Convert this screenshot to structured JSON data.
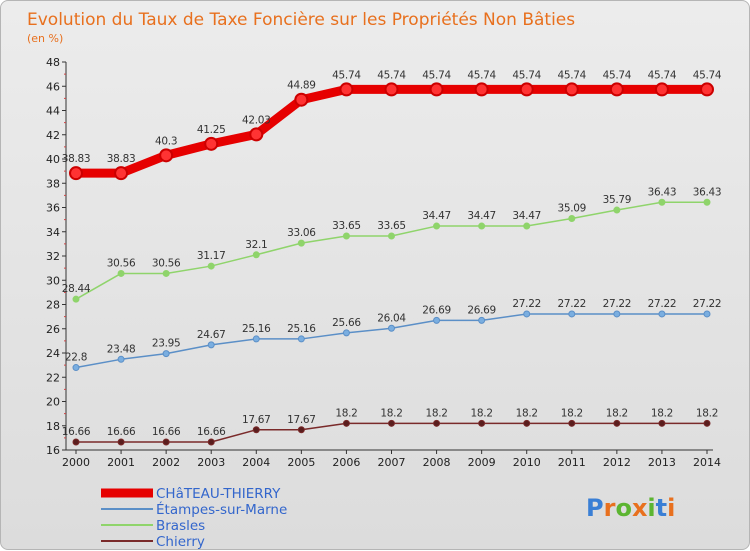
{
  "header": {
    "title": "Evolution du Taux de Taxe Foncière sur les Propriétés Non Bâties",
    "subtitle": "(en %)"
  },
  "logo": {
    "text": "Proxiti",
    "colors": [
      "#3a7fd5",
      "#e8701e",
      "#5cb531",
      "#e8701e",
      "#5cb531",
      "#3a7fd5",
      "#e8701e"
    ]
  },
  "chart_data": {
    "type": "line",
    "title": "Evolution du Taux de Taxe Foncière sur les Propriétés Non Bâties",
    "ylabel": "(en %)",
    "xlabel": "",
    "ylim": [
      16,
      48
    ],
    "y_ticks": [
      16,
      18,
      20,
      22,
      24,
      26,
      28,
      30,
      32,
      34,
      36,
      38,
      40,
      42,
      44,
      46,
      48
    ],
    "grid": false,
    "legend_position": "bottom-left",
    "x": [
      "2000",
      "2001",
      "2002",
      "2003",
      "2004",
      "2005",
      "2006",
      "2007",
      "2008",
      "2009",
      "2010",
      "2011",
      "2012",
      "2013",
      "2014"
    ],
    "series": [
      {
        "name": "CHâTEAU-THIERRY",
        "color": "#e60000",
        "marker_fill": "#ff3333",
        "width": 9,
        "values": [
          38.83,
          38.83,
          40.3,
          41.25,
          42.03,
          44.89,
          45.74,
          45.74,
          45.74,
          45.74,
          45.74,
          45.74,
          45.74,
          45.74,
          45.74
        ],
        "labels": [
          "38.83",
          "38.83",
          "40.3",
          "41.25",
          "42.03",
          "44.89",
          "45.74",
          "45.74",
          "45.74",
          "45.74",
          "45.74",
          "45.74",
          "45.74",
          "45.74",
          "45.74"
        ]
      },
      {
        "name": "Étampes-sur-Marne",
        "color": "#5b8fc7",
        "marker_fill": "#7aaee0",
        "width": 1.5,
        "values": [
          22.8,
          23.48,
          23.95,
          24.67,
          25.16,
          25.16,
          25.66,
          26.04,
          26.69,
          26.69,
          27.22,
          27.22,
          27.22,
          27.22,
          27.22
        ],
        "labels": [
          "22.8",
          "23.48",
          "23.95",
          "24.67",
          "25.16",
          "25.16",
          "25.66",
          "26.04",
          "26.69",
          "26.69",
          "27.22",
          "27.22",
          "27.22",
          "27.22",
          "27.22"
        ]
      },
      {
        "name": "Brasles",
        "color": "#8fd46b",
        "marker_fill": "#8fd46b",
        "width": 1.5,
        "values": [
          28.44,
          30.56,
          30.56,
          31.17,
          32.1,
          33.06,
          33.65,
          33.65,
          34.47,
          34.47,
          34.47,
          35.09,
          35.79,
          36.43,
          36.43
        ],
        "labels": [
          "28.44",
          "30.56",
          "30.56",
          "31.17",
          "32.1",
          "33.06",
          "33.65",
          "33.65",
          "34.47",
          "34.47",
          "34.47",
          "35.09",
          "35.79",
          "36.43",
          "36.43"
        ]
      },
      {
        "name": "Chierry",
        "color": "#7a2a2a",
        "marker_fill": "#5a1e1e",
        "width": 1.5,
        "values": [
          16.66,
          16.66,
          16.66,
          16.66,
          17.67,
          17.67,
          18.2,
          18.2,
          18.2,
          18.2,
          18.2,
          18.2,
          18.2,
          18.2,
          18.2
        ],
        "labels": [
          "16.66",
          "16.66",
          "16.66",
          "16.66",
          "17.67",
          "17.67",
          "18.2",
          "18.2",
          "18.2",
          "18.2",
          "18.2",
          "18.2",
          "18.2",
          "18.2",
          "18.2"
        ]
      }
    ]
  }
}
